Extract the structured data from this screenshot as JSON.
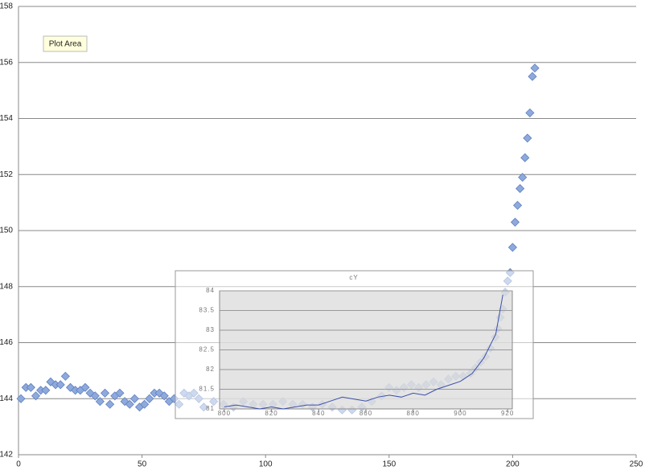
{
  "chart_data": [
    {
      "type": "scatter",
      "tooltip": "Plot Area",
      "x": [
        1,
        3,
        5,
        7,
        9,
        11,
        13,
        15,
        17,
        19,
        21,
        23,
        25,
        27,
        29,
        31,
        33,
        35,
        37,
        39,
        41,
        43,
        45,
        47,
        49,
        51,
        53,
        55,
        57,
        59,
        61,
        63,
        65,
        67,
        69,
        71,
        73,
        75,
        79,
        83,
        87,
        91,
        95,
        99,
        103,
        107,
        111,
        115,
        119,
        123,
        127,
        131,
        135,
        139,
        143,
        147,
        150,
        153,
        156,
        159,
        162,
        165,
        168,
        171,
        174,
        177,
        180,
        183,
        185,
        187,
        189,
        191,
        193,
        194,
        195,
        196,
        197,
        198,
        199,
        200,
        201,
        202,
        203,
        204,
        205,
        206,
        207,
        208,
        209
      ],
      "series": [
        {
          "color": "#8eaadc",
          "values": [
            144.0,
            144.4,
            144.4,
            144.1,
            144.3,
            144.3,
            144.6,
            144.5,
            144.5,
            144.8,
            144.4,
            144.3,
            144.3,
            144.4,
            144.2,
            144.1,
            143.9,
            144.2,
            143.8,
            144.1,
            144.2,
            143.9,
            143.8,
            144.0,
            143.7,
            143.8,
            144.0,
            144.2,
            144.2,
            144.1,
            143.9,
            144.0,
            143.8,
            144.2,
            144.1,
            144.2,
            144.0,
            143.7,
            143.9,
            143.8,
            143.7,
            143.9,
            143.8,
            143.8,
            143.8,
            143.9,
            143.8,
            143.8,
            143.7,
            143.8,
            143.7,
            143.6,
            143.6,
            143.7,
            143.9,
            144.1,
            144.4,
            144.3,
            144.4,
            144.5,
            144.4,
            144.5,
            144.6,
            144.5,
            144.7,
            144.8,
            144.8,
            144.9,
            145.1,
            145.3,
            145.5,
            145.8,
            146.2,
            146.5,
            146.9,
            147.2,
            147.8,
            148.2,
            148.5,
            149.4,
            150.3,
            150.9,
            151.5,
            151.9,
            152.6,
            153.3,
            154.2,
            155.5,
            155.8
          ]
        }
      ],
      "xlim": [
        0,
        250
      ],
      "xticks": [
        0,
        50,
        100,
        150,
        200,
        250
      ],
      "ylim": [
        142,
        158
      ],
      "yticks": [
        142,
        144,
        146,
        148,
        150,
        152,
        154,
        156,
        158
      ],
      "grid": true
    },
    {
      "type": "line",
      "title": "cY",
      "x": [
        800,
        805,
        810,
        815,
        820,
        825,
        830,
        835,
        840,
        845,
        850,
        855,
        860,
        865,
        870,
        875,
        880,
        885,
        890,
        895,
        900,
        905,
        910,
        915,
        918
      ],
      "series": [
        {
          "color": "#3b4fa8",
          "values": [
            81.05,
            81.1,
            81.05,
            81.0,
            81.05,
            81.0,
            81.05,
            81.1,
            81.1,
            81.2,
            81.3,
            81.25,
            81.2,
            81.3,
            81.35,
            81.3,
            81.4,
            81.35,
            81.5,
            81.6,
            81.7,
            81.9,
            82.3,
            82.9,
            83.9
          ]
        }
      ],
      "xlim": [
        798,
        922
      ],
      "xticks": [
        800,
        820,
        840,
        860,
        880,
        900,
        920
      ],
      "ylim": [
        81,
        84
      ],
      "yticks": [
        81,
        81.5,
        82,
        82.5,
        83,
        83.5,
        84
      ],
      "grid": true
    }
  ]
}
